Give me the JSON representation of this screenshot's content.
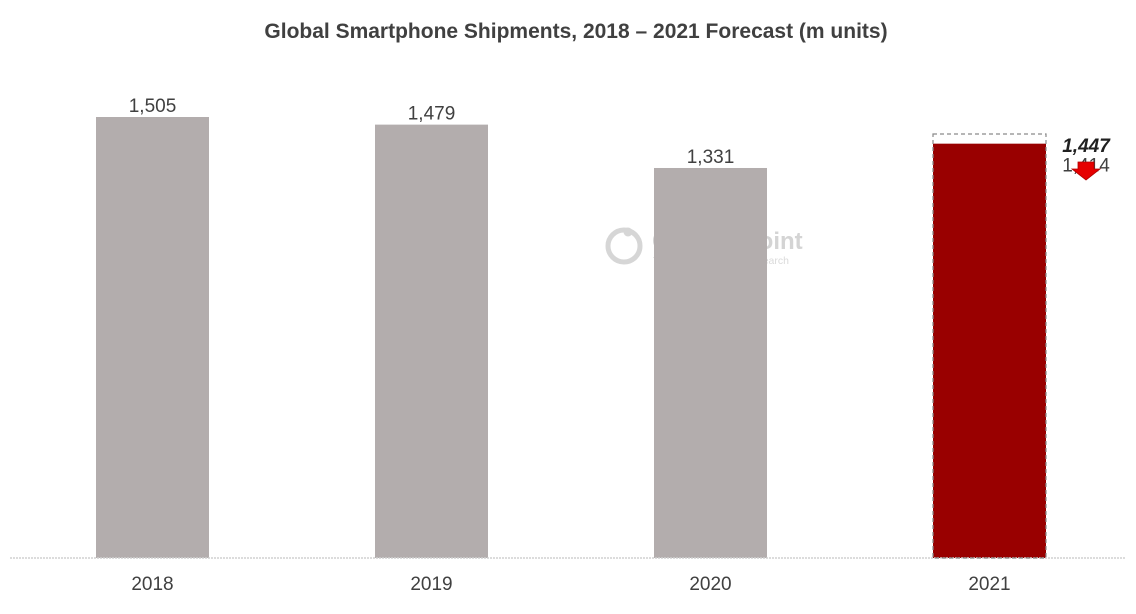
{
  "chart_data": {
    "type": "bar",
    "title": "Global Smartphone Shipments, 2018 – 2021 Forecast (m units)",
    "xlabel": "",
    "ylabel": "",
    "ylim": [
      0,
      1505
    ],
    "grid": false,
    "categories": [
      "2018",
      "2019",
      "2020",
      "2021"
    ],
    "values": [
      1505,
      1479,
      1331,
      1414
    ],
    "data_labels": [
      "1,505",
      "1,479",
      "1,331",
      "1,414"
    ],
    "bar_colors": [
      "#b3adad",
      "#b3adad",
      "#b3adad",
      "#990000"
    ],
    "previous_forecast": {
      "category": "2021",
      "value": 1447,
      "label": "1,447",
      "style": "dashed-outline"
    },
    "change_arrow": {
      "direction": "down",
      "color": "#e60000"
    }
  },
  "watermark": {
    "name": "Counterpoint",
    "tagline": "Technology Market Research"
  },
  "colors": {
    "bar_default": "#b3adad",
    "bar_highlight": "#990000",
    "arrow": "#e60000",
    "text": "#404040",
    "axis": "#d0d0d0"
  }
}
